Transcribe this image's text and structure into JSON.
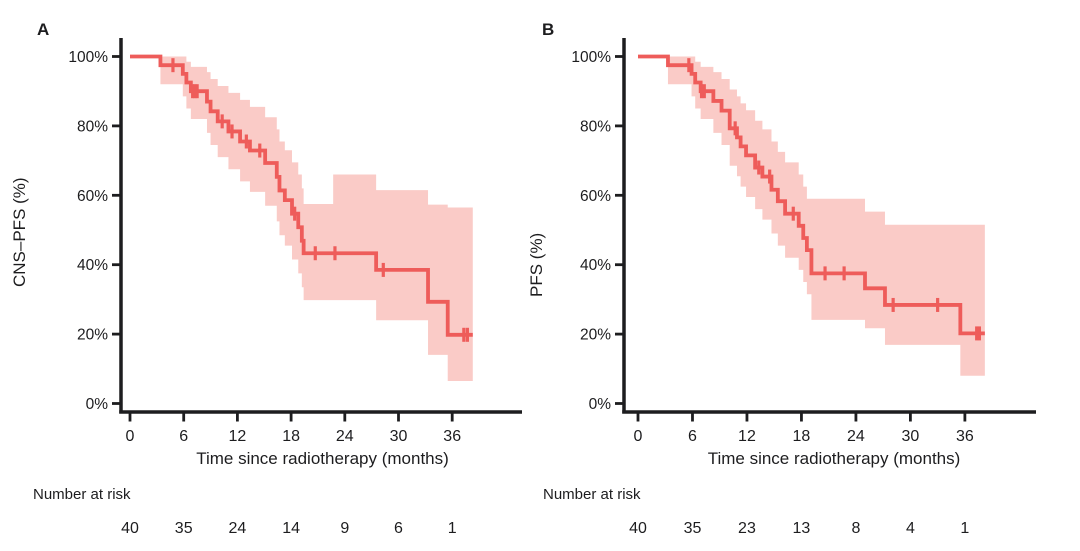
{
  "figure": {
    "background": "#ffffff",
    "text_color": "#1d1d1f"
  },
  "chart_data": [
    {
      "type": "line",
      "subtype": "kaplan-meier-step",
      "panel_label": "A",
      "ylabel": "CNS–PFS (%)",
      "xlabel": "Time since radiotherapy (months)",
      "x_tick_values": [
        0,
        6,
        12,
        18,
        24,
        30,
        36
      ],
      "x_tick_labels": [
        "0",
        "6",
        "12",
        "18",
        "24",
        "30",
        "36"
      ],
      "y_tick_values": [
        100,
        80,
        60,
        40,
        20,
        0
      ],
      "y_tick_labels": [
        "100%",
        "80%",
        "60%",
        "40%",
        "20%",
        "0%"
      ],
      "xlim": [
        0,
        44
      ],
      "ylim": [
        0,
        100
      ],
      "end_time": 38.3,
      "steps": [
        [
          0,
          100
        ],
        [
          3.4,
          97.5
        ],
        [
          5.9,
          95
        ],
        [
          6.3,
          92.5
        ],
        [
          6.8,
          90
        ],
        [
          8.6,
          87
        ],
        [
          9.0,
          84.2
        ],
        [
          9.8,
          81.3
        ],
        [
          11.0,
          78.4
        ],
        [
          12.3,
          75.5
        ],
        [
          13.4,
          72.9
        ],
        [
          15.1,
          69.3
        ],
        [
          16.4,
          65.3
        ],
        [
          16.7,
          61.4
        ],
        [
          17.3,
          58.6
        ],
        [
          18.1,
          54.7
        ],
        [
          18.8,
          50.8
        ],
        [
          19.2,
          46.9
        ],
        [
          19.4,
          43.3
        ],
        [
          27.5,
          38.5
        ],
        [
          33.3,
          29.3
        ],
        [
          35.5,
          19.8
        ]
      ],
      "censors": [
        [
          4.8,
          97.5
        ],
        [
          7.0,
          90
        ],
        [
          7.25,
          90
        ],
        [
          7.5,
          90
        ],
        [
          10.3,
          81.3
        ],
        [
          11.4,
          78.4
        ],
        [
          13.0,
          75.5
        ],
        [
          14.5,
          72.9
        ],
        [
          18.4,
          54.7
        ],
        [
          20.7,
          43.3
        ],
        [
          22.9,
          43.3
        ],
        [
          28.3,
          38.5
        ],
        [
          37.3,
          19.8
        ],
        [
          37.7,
          19.8
        ]
      ],
      "confidence_band": [
        [
          3.4,
          92,
          100
        ],
        [
          5.9,
          88.5,
          100
        ],
        [
          6.3,
          85,
          98.5
        ],
        [
          6.8,
          82,
          97
        ],
        [
          8.6,
          78,
          95.5
        ],
        [
          9.0,
          74.5,
          93.5
        ],
        [
          9.8,
          71,
          91.5
        ],
        [
          11.0,
          67.5,
          89.5
        ],
        [
          12.3,
          64,
          87.5
        ],
        [
          13.4,
          61,
          85.5
        ],
        [
          15.1,
          57,
          82.5
        ],
        [
          16.4,
          52.5,
          79
        ],
        [
          16.7,
          48.5,
          75.5
        ],
        [
          17.3,
          45.5,
          73
        ],
        [
          18.1,
          41.5,
          69.5
        ],
        [
          18.8,
          37.5,
          66
        ],
        [
          19.2,
          33.5,
          62
        ],
        [
          19.4,
          29.8,
          57.5
        ],
        [
          22.7,
          29.8,
          66
        ],
        [
          27.5,
          24,
          61.5
        ],
        [
          33.3,
          14,
          57.3
        ],
        [
          35.5,
          6.5,
          56.5
        ]
      ],
      "number_at_risk": {
        "label": "Number at risk",
        "times": [
          0,
          6,
          12,
          18,
          24,
          30,
          36
        ],
        "counts": [
          "40",
          "35",
          "24",
          "14",
          "9",
          "6",
          "1"
        ]
      },
      "colors": {
        "line": "#EE5C5A",
        "band": "#FACBC7",
        "axis": "#1d1d1f",
        "text": "#1d1d1f"
      }
    },
    {
      "type": "line",
      "subtype": "kaplan-meier-step",
      "panel_label": "B",
      "ylabel": "PFS (%)",
      "xlabel": "Time since radiotherapy (months)",
      "x_tick_values": [
        0,
        6,
        12,
        18,
        24,
        30,
        36
      ],
      "x_tick_labels": [
        "0",
        "6",
        "12",
        "18",
        "24",
        "30",
        "36"
      ],
      "y_tick_values": [
        100,
        80,
        60,
        40,
        20,
        0
      ],
      "y_tick_labels": [
        "100%",
        "80%",
        "60%",
        "40%",
        "20%",
        "0%"
      ],
      "xlim": [
        0,
        44
      ],
      "ylim": [
        0,
        100
      ],
      "end_time": 38.2,
      "steps": [
        [
          0,
          100
        ],
        [
          3.3,
          97.5
        ],
        [
          5.9,
          95
        ],
        [
          6.3,
          92.5
        ],
        [
          6.9,
          90
        ],
        [
          8.3,
          87.2
        ],
        [
          9.2,
          84.4
        ],
        [
          10.1,
          79.3
        ],
        [
          10.9,
          76.7
        ],
        [
          11.3,
          74.1
        ],
        [
          11.9,
          71.5
        ],
        [
          12.9,
          68.0
        ],
        [
          13.7,
          65.4
        ],
        [
          14.7,
          61.6
        ],
        [
          15.4,
          58.3
        ],
        [
          16.2,
          54.7
        ],
        [
          17.7,
          51.2
        ],
        [
          18.2,
          47.7
        ],
        [
          18.6,
          44.2
        ],
        [
          19.1,
          37.5
        ],
        [
          25.0,
          33.2
        ],
        [
          27.2,
          28.4
        ],
        [
          35.5,
          20.2
        ]
      ],
      "censors": [
        [
          5.6,
          97.5
        ],
        [
          7.0,
          90
        ],
        [
          7.3,
          90
        ],
        [
          10.7,
          79.3
        ],
        [
          13.3,
          68.0
        ],
        [
          14.5,
          65.4
        ],
        [
          17.1,
          54.7
        ],
        [
          20.6,
          37.5
        ],
        [
          22.7,
          37.5
        ],
        [
          28.1,
          28.4
        ],
        [
          33.0,
          28.4
        ],
        [
          37.3,
          20.2
        ],
        [
          37.6,
          20.2
        ]
      ],
      "confidence_band": [
        [
          3.3,
          92,
          100
        ],
        [
          5.9,
          88.5,
          100
        ],
        [
          6.3,
          85,
          98.5
        ],
        [
          6.9,
          82,
          97
        ],
        [
          8.3,
          78,
          95.5
        ],
        [
          9.2,
          74.5,
          93.5
        ],
        [
          10.1,
          68.5,
          90.5
        ],
        [
          10.9,
          65.5,
          88.5
        ],
        [
          11.3,
          62.5,
          86.5
        ],
        [
          11.9,
          59.5,
          84.5
        ],
        [
          12.9,
          56,
          81.5
        ],
        [
          13.7,
          53,
          79
        ],
        [
          14.7,
          49,
          75.5
        ],
        [
          15.4,
          45.5,
          72.5
        ],
        [
          16.2,
          42,
          69.5
        ],
        [
          17.7,
          38.5,
          66
        ],
        [
          18.2,
          35,
          62.5
        ],
        [
          18.6,
          31.5,
          59
        ],
        [
          19.1,
          24.1,
          59
        ],
        [
          25.0,
          21.7,
          55.3
        ],
        [
          27.2,
          16.9,
          51.5
        ],
        [
          35.5,
          8,
          51.5
        ]
      ],
      "number_at_risk": {
        "label": "Number at risk",
        "times": [
          0,
          6,
          12,
          18,
          24,
          30,
          36
        ],
        "counts": [
          "40",
          "35",
          "23",
          "13",
          "8",
          "4",
          "1"
        ]
      },
      "colors": {
        "line": "#EE5C5A",
        "band": "#FACBC7",
        "axis": "#1d1d1f",
        "text": "#1d1d1f"
      }
    }
  ]
}
